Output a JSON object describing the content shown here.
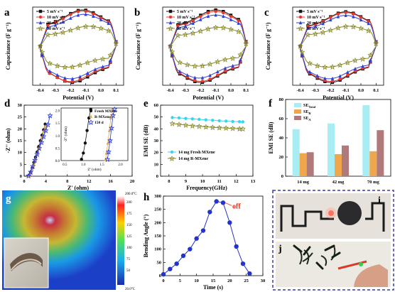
{
  "panels": {
    "a": {
      "letter": "a"
    },
    "b": {
      "letter": "b"
    },
    "c": {
      "letter": "c"
    },
    "d": {
      "letter": "d"
    },
    "e": {
      "letter": "e"
    },
    "f": {
      "letter": "f"
    },
    "g": {
      "letter": "g"
    },
    "h": {
      "letter": "h"
    },
    "i": {
      "letter": "i"
    },
    "j": {
      "letter": "j"
    }
  },
  "colors": {
    "black": "#111111",
    "red": "#e8392c",
    "blue": "#2b3fd6",
    "olive": "#8a8a2a",
    "cyan": "#35d6e8",
    "lightcyan": "#a8ecf4",
    "orange": "#f0a64a",
    "mauve": "#b07a7a",
    "pointblue": "#2433c8",
    "off": "#e0301e",
    "dashborder": "#3a3aa8"
  },
  "chart_data": [
    {
      "panel": "a",
      "type": "line",
      "xlabel": "Potential (V)",
      "ylabel": "Capacitance (F g⁻¹)",
      "xlim": [
        -0.45,
        0.15
      ],
      "xticks": [
        "-0.4",
        "-0.3",
        "-0.2",
        "-0.1",
        "0.0",
        "0.1"
      ],
      "yticks": [],
      "legend": [
        "5 mV s⁻¹",
        "10 mV s⁻¹",
        "20 mV s⁻¹",
        "50 mV s⁻¹"
      ],
      "legend_position": "top-left",
      "series": [
        {
          "name": "5 mV s⁻¹",
          "upper_peak": 1.0,
          "lower_peak": -1.0,
          "peak_x": -0.12,
          "low_x": -0.19
        },
        {
          "name": "10 mV s⁻¹",
          "upper_peak": 0.97,
          "lower_peak": -0.98,
          "peak_x": -0.12,
          "low_x": -0.2
        },
        {
          "name": "20 mV s⁻¹",
          "upper_peak": 0.88,
          "lower_peak": -0.9,
          "peak_x": -0.11,
          "low_x": -0.2
        },
        {
          "name": "50 mV s⁻¹",
          "upper_peak": 0.55,
          "lower_peak": -0.58,
          "peak_x": -0.08,
          "low_x": -0.22
        }
      ]
    },
    {
      "panel": "b",
      "type": "line",
      "xlabel": "Potential (V)",
      "ylabel": "Capacitance (F g⁻¹)",
      "xlim": [
        -0.45,
        0.15
      ],
      "xticks": [
        "-0.4",
        "-0.3",
        "-0.2",
        "-0.1",
        "0.0",
        "0.1"
      ],
      "legend": [
        "5 mV s⁻¹",
        "10 mV s⁻¹",
        "20 mV s⁻¹",
        "50 mV s⁻¹"
      ],
      "legend_position": "top-left",
      "series": [
        {
          "name": "5 mV s⁻¹",
          "upper_peak": 1.0,
          "lower_peak": -1.0,
          "peak_x": -0.1,
          "low_x": -0.2
        },
        {
          "name": "10 mV s⁻¹",
          "upper_peak": 0.96,
          "lower_peak": -0.97,
          "peak_x": -0.1,
          "low_x": -0.2
        },
        {
          "name": "20 mV s⁻¹",
          "upper_peak": 0.86,
          "lower_peak": -0.88,
          "peak_x": -0.1,
          "low_x": -0.21
        },
        {
          "name": "50 mV s⁻¹",
          "upper_peak": 0.52,
          "lower_peak": -0.55,
          "peak_x": -0.08,
          "low_x": -0.22
        }
      ]
    },
    {
      "panel": "c",
      "type": "line",
      "xlabel": "Potential (V)",
      "ylabel": "Capacitance (F g⁻¹)",
      "xlim": [
        -0.45,
        0.15
      ],
      "xticks": [
        "-0.4",
        "-0.3",
        "-0.2",
        "-0.1",
        "0.0",
        "0.1"
      ],
      "legend": [
        "5 mV s⁻¹",
        "10 mV s⁻¹",
        "20 mV s⁻¹",
        "50 mV s⁻¹"
      ],
      "legend_position": "top-left",
      "series": [
        {
          "name": "5 mV s⁻¹",
          "upper_peak": 0.95,
          "lower_peak": -1.0,
          "peak_x": -0.1,
          "low_x": -0.2
        },
        {
          "name": "10 mV s⁻¹",
          "upper_peak": 0.93,
          "lower_peak": -0.97,
          "peak_x": -0.1,
          "low_x": -0.2
        },
        {
          "name": "20 mV s⁻¹",
          "upper_peak": 0.85,
          "lower_peak": -0.9,
          "peak_x": -0.1,
          "low_x": -0.21
        },
        {
          "name": "50 mV s⁻¹",
          "upper_peak": 0.55,
          "lower_peak": -0.58,
          "peak_x": -0.08,
          "low_x": -0.22
        }
      ]
    },
    {
      "panel": "d",
      "type": "scatter",
      "xlabel": "Z' (ohm)",
      "ylabel": "-Z'' (ohm)",
      "xlim": [
        0,
        20
      ],
      "ylim": [
        0,
        30
      ],
      "xticks": [
        "0",
        "4",
        "8",
        "12",
        "16",
        "20"
      ],
      "yticks": [
        "0",
        "5",
        "10",
        "15",
        "20",
        "25",
        "30"
      ],
      "legend": [
        "Fresh MXene",
        "R-MXene",
        "150 d"
      ],
      "series": [
        {
          "name": "Fresh MXene",
          "x": [
            0.9,
            1.2,
            1.5,
            1.8,
            2.1,
            2.4,
            2.7,
            3.0,
            3.3,
            3.6,
            3.9
          ],
          "y": [
            0.3,
            1.5,
            3.5,
            5.8,
            8.0,
            10.2,
            12.5,
            15.0,
            17.3,
            19.6,
            22.0
          ]
        },
        {
          "name": "R-MXene",
          "x": [
            0.9,
            1.2,
            1.5,
            1.8,
            2.1,
            2.4,
            2.7,
            3.0,
            3.3,
            3.6,
            3.9
          ],
          "y": [
            0.3,
            1.2,
            3.0,
            5.2,
            7.4,
            9.6,
            11.8,
            14.2,
            16.5,
            18.8,
            21.0
          ]
        },
        {
          "name": "150 d",
          "x": [
            0.8,
            1.2,
            1.6,
            2.0,
            2.4,
            2.8,
            3.2,
            3.6,
            4.0,
            4.4,
            4.8
          ],
          "y": [
            0.2,
            1.8,
            4.2,
            6.8,
            9.3,
            11.8,
            14.3,
            16.8,
            19.3,
            21.8,
            25.6
          ]
        }
      ],
      "inset": {
        "xlabel": "Z' (ohm)",
        "ylabel": "-Z'' (ohm)",
        "xticks": [
          "0.5",
          "1.0",
          "1.5",
          "2.0"
        ],
        "yticks": [
          "0.0",
          "0.5",
          "1.0",
          "1.5",
          "2.0"
        ]
      }
    },
    {
      "panel": "e",
      "type": "line",
      "xlabel": "Frequency(GHz)",
      "ylabel": "EMI SE (dB)",
      "xlim": [
        7.5,
        13
      ],
      "ylim": [
        0,
        60
      ],
      "xticks": [
        "8",
        "9",
        "10",
        "11",
        "12",
        "13"
      ],
      "yticks": [
        "0",
        "10",
        "20",
        "30",
        "40",
        "50",
        "60"
      ],
      "legend": [
        "14 mg Fresh MXene",
        "14 mg R-MXene"
      ],
      "legend_position": "center",
      "series": [
        {
          "name": "14 mg Fresh MXene",
          "x": [
            8.2,
            8.6,
            9.0,
            9.4,
            9.8,
            10.2,
            10.6,
            11.0,
            11.4,
            11.8,
            12.2,
            12.4
          ],
          "y": [
            49.5,
            49.2,
            48.8,
            48.4,
            48.0,
            47.6,
            47.2,
            46.8,
            46.5,
            46.2,
            46.0,
            45.9
          ]
        },
        {
          "name": "14 mg R-MXene",
          "x": [
            8.2,
            8.6,
            9.0,
            9.4,
            9.8,
            10.2,
            10.6,
            11.0,
            11.4,
            11.8,
            12.2,
            12.4
          ],
          "y": [
            44.5,
            43.8,
            43.2,
            42.6,
            42.1,
            41.7,
            41.3,
            41.0,
            40.7,
            40.4,
            40.1,
            40.0
          ]
        }
      ]
    },
    {
      "panel": "f",
      "type": "bar",
      "ylabel": "EMI SE (dB)",
      "ylim": [
        0,
        80
      ],
      "yticks": [
        "0",
        "20",
        "40",
        "60",
        "80"
      ],
      "categories": [
        "14 mg",
        "42 mg",
        "70 mg"
      ],
      "legend": [
        "SE_Total",
        "SE_R",
        "SE_A"
      ],
      "series": [
        {
          "name": "SE_Total",
          "values": [
            49,
            55,
            74
          ]
        },
        {
          "name": "SE_R",
          "values": [
            24,
            23,
            26
          ]
        },
        {
          "name": "SE_A",
          "values": [
            25,
            32,
            48
          ]
        }
      ]
    },
    {
      "panel": "g",
      "type": "heatmap",
      "colorbar_max": "200.0°C",
      "colorbar_min": "20.0°C",
      "colorbar_ticks": [
        "200",
        "175",
        "150",
        "125",
        "100",
        "75",
        "50"
      ]
    },
    {
      "panel": "h",
      "type": "line",
      "xlabel": "Time (s)",
      "ylabel": "Bending Angle (°)",
      "xlim": [
        0,
        30
      ],
      "ylim": [
        0,
        300
      ],
      "xticks": [
        "0",
        "5",
        "10",
        "15",
        "20",
        "25",
        "30"
      ],
      "yticks": [
        "0",
        "50",
        "100",
        "150",
        "200",
        "250",
        "300"
      ],
      "annotation": "off",
      "x": [
        0,
        2,
        4,
        6,
        8,
        10,
        12,
        14,
        16,
        18,
        20,
        22,
        24,
        26
      ],
      "y": [
        5,
        25,
        45,
        75,
        100,
        140,
        170,
        240,
        280,
        275,
        200,
        110,
        45,
        8
      ]
    }
  ]
}
